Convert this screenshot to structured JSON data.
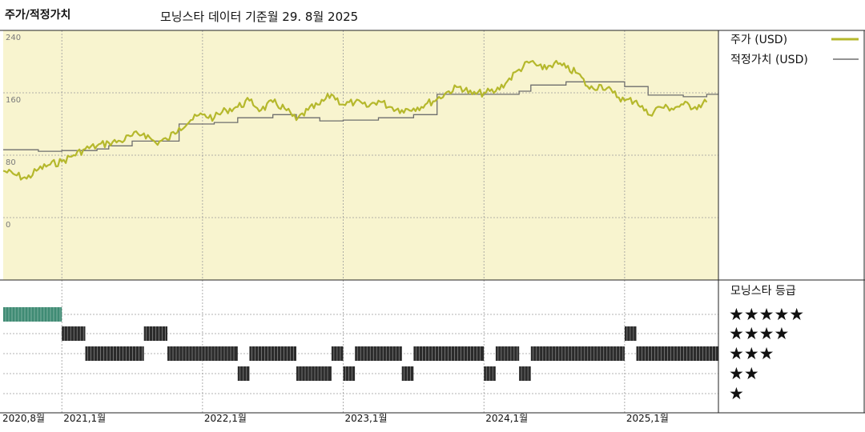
{
  "header": {
    "title": "주가/적정가치",
    "subtitle": "모닝스타 데이터 기준월 29. 8월 2025"
  },
  "colors": {
    "price": "#b5b82c",
    "fair_value": "#6e6e6e",
    "panel_bg": "#f8f4cf",
    "grid": "#9a9a9a",
    "rating_5": "#3f8b74",
    "rating_other": "#2b2b2b"
  },
  "legend": {
    "price_label": "주가 (USD)",
    "fair_label": "적정가치 (USD)",
    "rating_title": "모닝스타 등급"
  },
  "chart_data": [
    {
      "type": "line",
      "title": "주가/적정가치",
      "xlabel": "",
      "ylabel": "",
      "x_range": [
        "2020-08",
        "2025-09"
      ],
      "ylim": [
        0,
        240
      ],
      "y_ticks": [
        "240",
        "160",
        "80",
        "0"
      ],
      "x_ticks": [
        "2020,8월",
        "2021,1월",
        "2022,1월",
        "2023,1월",
        "2024,1월",
        "2025,1월"
      ],
      "grid": true,
      "legend_position": "right",
      "series": [
        {
          "name": "주가 (USD)",
          "points": [
            [
              "2020-08",
              60
            ],
            [
              "2020-09",
              55
            ],
            [
              "2020-10",
              50
            ],
            [
              "2020-11",
              62
            ],
            [
              "2020-12",
              68
            ],
            [
              "2021-01",
              72
            ],
            [
              "2021-02",
              80
            ],
            [
              "2021-03",
              88
            ],
            [
              "2021-04",
              92
            ],
            [
              "2021-05",
              96
            ],
            [
              "2021-06",
              98
            ],
            [
              "2021-07",
              105
            ],
            [
              "2021-08",
              108
            ],
            [
              "2021-09",
              96
            ],
            [
              "2021-10",
              100
            ],
            [
              "2021-11",
              115
            ],
            [
              "2021-12",
              125
            ],
            [
              "2022-01",
              132
            ],
            [
              "2022-02",
              128
            ],
            [
              "2022-03",
              138
            ],
            [
              "2022-04",
              142
            ],
            [
              "2022-05",
              150
            ],
            [
              "2022-06",
              138
            ],
            [
              "2022-07",
              148
            ],
            [
              "2022-08",
              140
            ],
            [
              "2022-09",
              125
            ],
            [
              "2022-10",
              138
            ],
            [
              "2022-11",
              145
            ],
            [
              "2022-12",
              158
            ],
            [
              "2023-01",
              145
            ],
            [
              "2023-02",
              148
            ],
            [
              "2023-03",
              142
            ],
            [
              "2023-04",
              150
            ],
            [
              "2023-05",
              142
            ],
            [
              "2023-06",
              138
            ],
            [
              "2023-07",
              140
            ],
            [
              "2023-08",
              145
            ],
            [
              "2023-09",
              152
            ],
            [
              "2023-10",
              162
            ],
            [
              "2023-11",
              168
            ],
            [
              "2023-12",
              158
            ],
            [
              "2024-01",
              160
            ],
            [
              "2024-02",
              162
            ],
            [
              "2024-03",
              175
            ],
            [
              "2024-04",
              190
            ],
            [
              "2024-05",
              200
            ],
            [
              "2024-06",
              190
            ],
            [
              "2024-07",
              198
            ],
            [
              "2024-08",
              192
            ],
            [
              "2024-09",
              185
            ],
            [
              "2024-10",
              165
            ],
            [
              "2024-11",
              170
            ],
            [
              "2024-12",
              160
            ],
            [
              "2025-01",
              150
            ],
            [
              "2025-02",
              150
            ],
            [
              "2025-03",
              132
            ],
            [
              "2025-04",
              142
            ],
            [
              "2025-05",
              140
            ],
            [
              "2025-06",
              145
            ],
            [
              "2025-07",
              142
            ],
            [
              "2025-08",
              148
            ]
          ]
        },
        {
          "name": "적정가치 (USD)",
          "points": [
            [
              "2020-08",
              87
            ],
            [
              "2020-11",
              87
            ],
            [
              "2020-11",
              85
            ],
            [
              "2021-01",
              86
            ],
            [
              "2021-04",
              88
            ],
            [
              "2021-05",
              92
            ],
            [
              "2021-07",
              98
            ],
            [
              "2021-11",
              120
            ],
            [
              "2022-02",
              122
            ],
            [
              "2022-04",
              128
            ],
            [
              "2022-07",
              132
            ],
            [
              "2022-09",
              128
            ],
            [
              "2022-11",
              124
            ],
            [
              "2023-01",
              125
            ],
            [
              "2023-04",
              128
            ],
            [
              "2023-07",
              132
            ],
            [
              "2023-09",
              158
            ],
            [
              "2024-04",
              162
            ],
            [
              "2024-05",
              170
            ],
            [
              "2024-08",
              174
            ],
            [
              "2025-01",
              168
            ],
            [
              "2025-03",
              157
            ],
            [
              "2025-06",
              155
            ],
            [
              "2025-08",
              158
            ]
          ]
        }
      ]
    },
    {
      "type": "heatmap",
      "title": "모닝스타 등급",
      "rows": [
        "★★★★★",
        "★★★★",
        "★★★",
        "★★",
        "★"
      ],
      "periods": [
        {
          "rating": 5,
          "from": "2020-08",
          "to": "2021-01"
        },
        {
          "rating": 4,
          "from": "2021-01",
          "to": "2021-03"
        },
        {
          "rating": 3,
          "from": "2021-03",
          "to": "2021-08"
        },
        {
          "rating": 4,
          "from": "2021-08",
          "to": "2021-10"
        },
        {
          "rating": 3,
          "from": "2021-10",
          "to": "2022-04"
        },
        {
          "rating": 2,
          "from": "2022-04",
          "to": "2022-05"
        },
        {
          "rating": 3,
          "from": "2022-05",
          "to": "2022-09"
        },
        {
          "rating": 2,
          "from": "2022-09",
          "to": "2022-12"
        },
        {
          "rating": 3,
          "from": "2022-12",
          "to": "2023-01"
        },
        {
          "rating": 2,
          "from": "2023-01",
          "to": "2023-02"
        },
        {
          "rating": 3,
          "from": "2023-02",
          "to": "2023-06"
        },
        {
          "rating": 2,
          "from": "2023-06",
          "to": "2023-07"
        },
        {
          "rating": 3,
          "from": "2023-07",
          "to": "2024-01"
        },
        {
          "rating": 2,
          "from": "2024-01",
          "to": "2024-02"
        },
        {
          "rating": 3,
          "from": "2024-02",
          "to": "2024-04"
        },
        {
          "rating": 2,
          "from": "2024-04",
          "to": "2024-05"
        },
        {
          "rating": 3,
          "from": "2024-05",
          "to": "2025-01"
        },
        {
          "rating": 4,
          "from": "2025-01",
          "to": "2025-02"
        },
        {
          "rating": 3,
          "from": "2025-02",
          "to": "2025-09"
        }
      ]
    }
  ]
}
